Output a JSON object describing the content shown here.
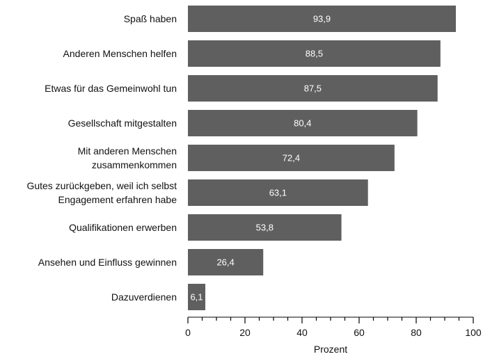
{
  "chart_data": {
    "type": "bar",
    "orientation": "horizontal",
    "categories": [
      [
        "Spaß haben"
      ],
      [
        "Anderen Menschen helfen"
      ],
      [
        "Etwas für das Gemeinwohl tun"
      ],
      [
        "Gesellschaft mitgestalten"
      ],
      [
        "Mit anderen Menschen",
        "zusammenkommen"
      ],
      [
        "Gutes zurückgeben, weil ich selbst",
        "Engagement erfahren habe"
      ],
      [
        "Qualifikationen erwerben"
      ],
      [
        "Ansehen und Einfluss gewinnen"
      ],
      [
        "Dazuverdienen"
      ]
    ],
    "values": [
      93.9,
      88.5,
      87.5,
      80.4,
      72.4,
      63.1,
      53.8,
      26.4,
      6.1
    ],
    "value_labels": [
      "93,9",
      "88,5",
      "87,5",
      "80,4",
      "72,4",
      "63,1",
      "53,8",
      "26,4",
      "6,1"
    ],
    "xlabel": "Prozent",
    "xlim": [
      0,
      100
    ],
    "major_ticks": [
      0,
      20,
      40,
      60,
      80,
      100
    ],
    "minor_tick_step": 5,
    "grid": false,
    "colors": {
      "bar": "#5f5f5f",
      "bar_label": "#ffffff",
      "text": "#111111",
      "axis": "#000000"
    }
  }
}
